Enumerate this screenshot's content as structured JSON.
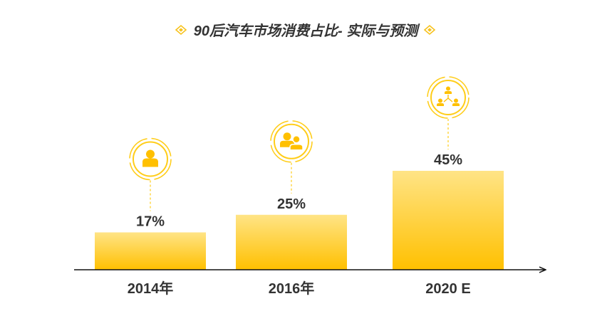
{
  "chart_data": {
    "type": "bar",
    "title": "90后汽车市场消费占比- 实际与预测",
    "categories": [
      "2014年",
      "2016年",
      "2020 E"
    ],
    "values": [
      17,
      25,
      45
    ],
    "value_labels": [
      "17%",
      "25%",
      "45%"
    ],
    "icons": [
      "single-person-icon",
      "people-group-icon",
      "network-people-icon"
    ],
    "ylim": [
      0,
      50
    ],
    "xlabel": "",
    "ylabel": "",
    "grid": false,
    "legend": "none"
  },
  "colors": {
    "bar_top": "#FFE486",
    "bar_bottom": "#FFC000",
    "icon_yellow": "#FFC000",
    "icon_ring": "#FFCD19",
    "axis": "#111111",
    "text": "#333333",
    "title_deco": "#F7C21D"
  }
}
